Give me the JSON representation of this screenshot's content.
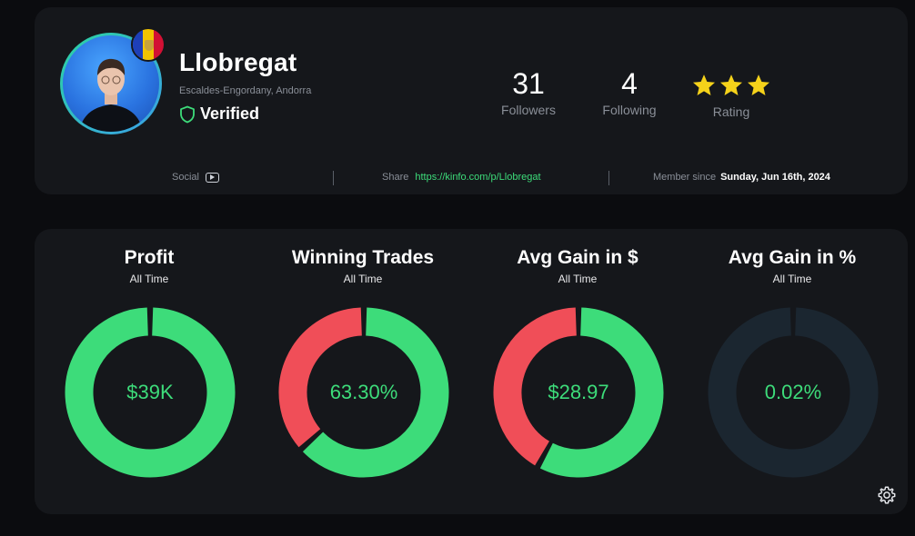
{
  "profile": {
    "name": "Llobregat",
    "location": "Escaldes-Engordany, Andorra",
    "verified_label": "Verified",
    "flag_icon": "andorra-flag-icon",
    "stats": {
      "followers_value": "31",
      "followers_label": "Followers",
      "following_value": "4",
      "following_label": "Following",
      "rating_label": "Rating",
      "rating_stars": 3
    },
    "footer": {
      "social_label": "Social",
      "share_label": "Share",
      "share_url": "https://kinfo.com/p/Llobregat",
      "member_label": "Member since",
      "member_date": "Sunday, Jun 16th, 2024"
    }
  },
  "metrics": [
    {
      "title": "Profit",
      "subtitle": "All Time",
      "value": "$39K",
      "green_fraction": 1.0
    },
    {
      "title": "Winning Trades",
      "subtitle": "All Time",
      "value": "63.30%",
      "green_fraction": 0.633
    },
    {
      "title": "Avg Gain in $",
      "subtitle": "All Time",
      "value": "$28.97",
      "green_fraction": 0.58
    },
    {
      "title": "Avg Gain in %",
      "subtitle": "All Time",
      "value": "0.02%",
      "green_fraction": 0.0002
    }
  ],
  "colors": {
    "green": "#3ddc7a",
    "red": "#f04e58",
    "track": "#1b2630",
    "card": "#15171b",
    "star": "#f5d21a"
  },
  "icons": {
    "verified": "shield-icon",
    "social": "youtube-icon",
    "settings": "gear-icon",
    "rating": "star-icon"
  }
}
